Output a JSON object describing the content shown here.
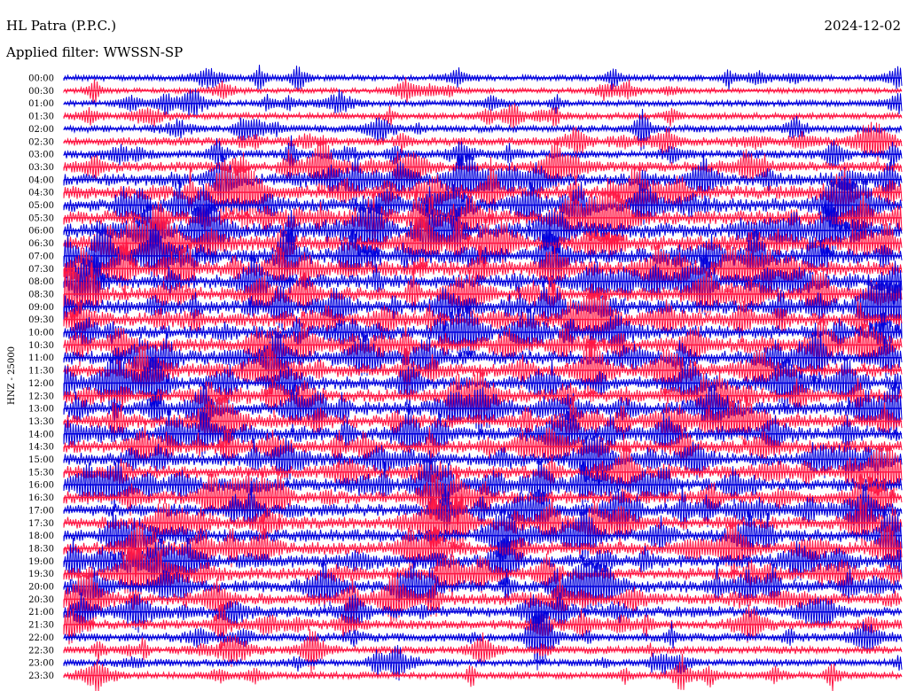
{
  "header": {
    "station": "HL Patra (P.P.C.)",
    "date": "2024-12-02",
    "filter_label": "Applied filter: WWSSN-SP"
  },
  "chart_data": {
    "type": "line",
    "title": "HL Patra (P.P.C.)",
    "ylabel": "HNZ - 25000",
    "xlabel": "",
    "grid": false,
    "row_colors": [
      "#0000dd",
      "#ff1744"
    ],
    "rows": [
      {
        "label": "00:00",
        "activity": 0.25
      },
      {
        "label": "00:30",
        "activity": 0.2
      },
      {
        "label": "01:00",
        "activity": 0.25
      },
      {
        "label": "01:30",
        "activity": 0.3
      },
      {
        "label": "02:00",
        "activity": 0.35
      },
      {
        "label": "02:30",
        "activity": 0.45
      },
      {
        "label": "03:00",
        "activity": 0.45
      },
      {
        "label": "03:30",
        "activity": 0.6
      },
      {
        "label": "04:00",
        "activity": 0.75
      },
      {
        "label": "04:30",
        "activity": 0.85
      },
      {
        "label": "05:00",
        "activity": 0.9
      },
      {
        "label": "05:30",
        "activity": 0.95
      },
      {
        "label": "06:00",
        "activity": 1.0
      },
      {
        "label": "06:30",
        "activity": 1.0
      },
      {
        "label": "07:00",
        "activity": 1.0
      },
      {
        "label": "07:30",
        "activity": 0.95
      },
      {
        "label": "08:00",
        "activity": 0.9
      },
      {
        "label": "08:30",
        "activity": 0.9
      },
      {
        "label": "09:00",
        "activity": 0.9
      },
      {
        "label": "09:30",
        "activity": 0.85
      },
      {
        "label": "10:00",
        "activity": 0.85
      },
      {
        "label": "10:30",
        "activity": 0.9
      },
      {
        "label": "11:00",
        "activity": 0.9
      },
      {
        "label": "11:30",
        "activity": 0.85
      },
      {
        "label": "12:00",
        "activity": 0.85
      },
      {
        "label": "12:30",
        "activity": 0.85
      },
      {
        "label": "13:00",
        "activity": 0.85
      },
      {
        "label": "13:30",
        "activity": 0.85
      },
      {
        "label": "14:00",
        "activity": 0.85
      },
      {
        "label": "14:30",
        "activity": 0.8
      },
      {
        "label": "15:00",
        "activity": 0.8
      },
      {
        "label": "15:30",
        "activity": 0.8
      },
      {
        "label": "16:00",
        "activity": 0.8
      },
      {
        "label": "16:30",
        "activity": 0.8
      },
      {
        "label": "17:00",
        "activity": 0.8
      },
      {
        "label": "17:30",
        "activity": 0.8
      },
      {
        "label": "18:00",
        "activity": 0.8
      },
      {
        "label": "18:30",
        "activity": 0.8
      },
      {
        "label": "19:00",
        "activity": 0.8
      },
      {
        "label": "19:30",
        "activity": 0.8
      },
      {
        "label": "20:00",
        "activity": 0.75
      },
      {
        "label": "20:30",
        "activity": 0.7
      },
      {
        "label": "21:00",
        "activity": 0.65
      },
      {
        "label": "21:30",
        "activity": 0.55
      },
      {
        "label": "22:00",
        "activity": 0.45
      },
      {
        "label": "22:30",
        "activity": 0.4
      },
      {
        "label": "23:00",
        "activity": 0.35
      },
      {
        "label": "23:30",
        "activity": 0.35
      }
    ]
  }
}
